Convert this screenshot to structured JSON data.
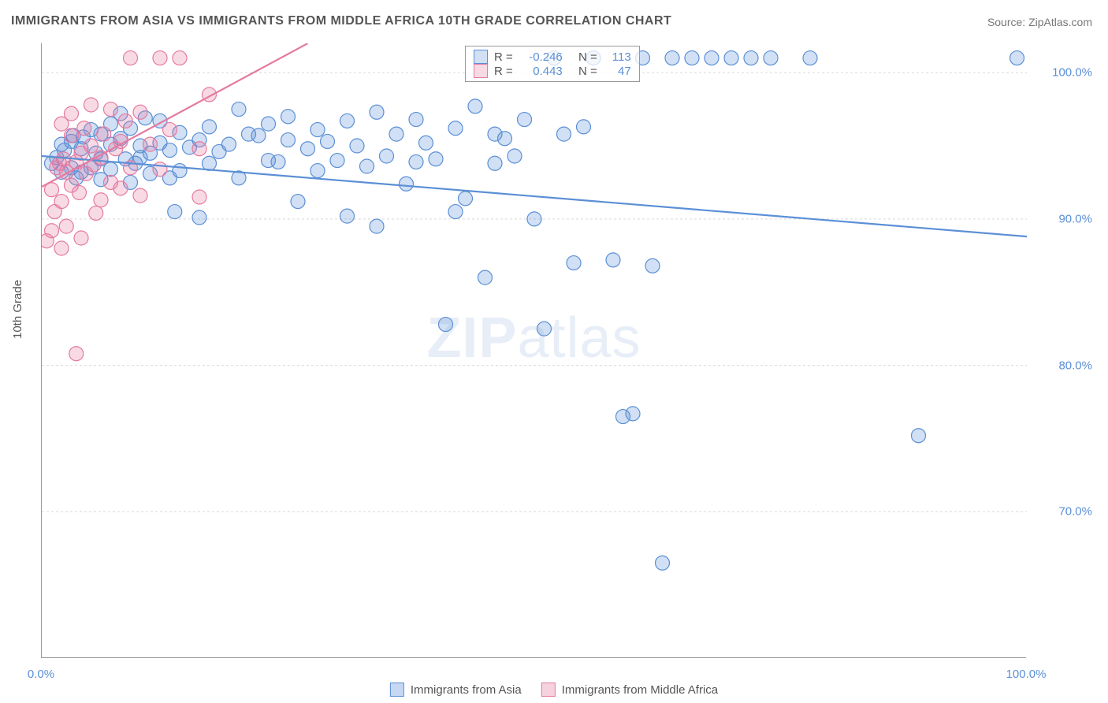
{
  "title": "IMMIGRANTS FROM ASIA VS IMMIGRANTS FROM MIDDLE AFRICA 10TH GRADE CORRELATION CHART",
  "source": "Source: ZipAtlas.com",
  "ylabel": "10th Grade",
  "watermark_bold": "ZIP",
  "watermark_rest": "atlas",
  "chart": {
    "type": "scatter",
    "background_color": "#ffffff",
    "grid_color": "#d9d9d9",
    "axis_color": "#999999",
    "xlim": [
      0,
      100
    ],
    "ylim": [
      60,
      102
    ],
    "xtick_positions": [
      0,
      12,
      24,
      36,
      48,
      60,
      72,
      84,
      100
    ],
    "xtick_labels_shown": {
      "0": "0.0%",
      "100": "100.0%"
    },
    "ytick_positions": [
      70,
      80,
      90,
      100
    ],
    "ytick_labels": [
      "70.0%",
      "80.0%",
      "90.0%",
      "100.0%"
    ],
    "tick_label_color": "#5b8fd6",
    "tick_fontsize": 15,
    "marker_radius": 9,
    "marker_fill_opacity": 0.28,
    "marker_stroke_width": 1.2,
    "trend_line_width": 2.2,
    "series": [
      {
        "name": "Immigrants from Asia",
        "color": "#5b8fd6",
        "fill": "rgba(91,143,214,0.28)",
        "R": "-0.246",
        "N": "113",
        "trend": {
          "x1": 0,
          "y1": 94.3,
          "x2": 100,
          "y2": 88.8
        },
        "points": [
          [
            1,
            93.8
          ],
          [
            1.5,
            94.2
          ],
          [
            2,
            95.1
          ],
          [
            2,
            93.2
          ],
          [
            2.3,
            94.7
          ],
          [
            3,
            95.3
          ],
          [
            3,
            93.5
          ],
          [
            3.2,
            95.7
          ],
          [
            3.5,
            92.8
          ],
          [
            4,
            94.8
          ],
          [
            4,
            93.2
          ],
          [
            4.2,
            95.6
          ],
          [
            5,
            96.1
          ],
          [
            5,
            93.5
          ],
          [
            5.5,
            94.5
          ],
          [
            6,
            95.8
          ],
          [
            6,
            92.7
          ],
          [
            6,
            94.1
          ],
          [
            7,
            96.5
          ],
          [
            7,
            93.4
          ],
          [
            7,
            95.1
          ],
          [
            8,
            97.2
          ],
          [
            8,
            95.5
          ],
          [
            8.5,
            94.1
          ],
          [
            9,
            92.5
          ],
          [
            9,
            96.2
          ],
          [
            9.5,
            93.8
          ],
          [
            10,
            95.0
          ],
          [
            10,
            94.2
          ],
          [
            10.5,
            96.9
          ],
          [
            11,
            94.5
          ],
          [
            11,
            93.1
          ],
          [
            12,
            95.2
          ],
          [
            12,
            96.7
          ],
          [
            13,
            94.7
          ],
          [
            13,
            92.8
          ],
          [
            13.5,
            90.5
          ],
          [
            14,
            95.9
          ],
          [
            14,
            93.3
          ],
          [
            15,
            94.9
          ],
          [
            16,
            95.4
          ],
          [
            16,
            90.1
          ],
          [
            17,
            96.3
          ],
          [
            17,
            93.8
          ],
          [
            18,
            94.6
          ],
          [
            19,
            95.1
          ],
          [
            20,
            97.5
          ],
          [
            20,
            92.8
          ],
          [
            21,
            95.8
          ],
          [
            22,
            95.7
          ],
          [
            23,
            94.0
          ],
          [
            23,
            96.5
          ],
          [
            24,
            93.9
          ],
          [
            25,
            95.4
          ],
          [
            25,
            97.0
          ],
          [
            26,
            91.2
          ],
          [
            27,
            94.8
          ],
          [
            28,
            96.1
          ],
          [
            28,
            93.3
          ],
          [
            29,
            95.3
          ],
          [
            30,
            94.0
          ],
          [
            31,
            96.7
          ],
          [
            31,
            90.2
          ],
          [
            32,
            95.0
          ],
          [
            33,
            93.6
          ],
          [
            34,
            97.3
          ],
          [
            34,
            89.5
          ],
          [
            35,
            94.3
          ],
          [
            36,
            95.8
          ],
          [
            37,
            92.4
          ],
          [
            38,
            96.8
          ],
          [
            38,
            93.9
          ],
          [
            39,
            95.2
          ],
          [
            40,
            94.1
          ],
          [
            41,
            82.8
          ],
          [
            42,
            96.2
          ],
          [
            42,
            90.5
          ],
          [
            43,
            91.4
          ],
          [
            44,
            97.7
          ],
          [
            45,
            86.0
          ],
          [
            46,
            93.8
          ],
          [
            46,
            95.8
          ],
          [
            47,
            95.5
          ],
          [
            48,
            94.3
          ],
          [
            49,
            96.8
          ],
          [
            50,
            90.0
          ],
          [
            51,
            82.5
          ],
          [
            52,
            101.0
          ],
          [
            53,
            95.8
          ],
          [
            54,
            87.0
          ],
          [
            55,
            96.3
          ],
          [
            56,
            101.0
          ],
          [
            58,
            87.2
          ],
          [
            59,
            76.5
          ],
          [
            60,
            76.7
          ],
          [
            61,
            101.0
          ],
          [
            62,
            86.8
          ],
          [
            64,
            101.0
          ],
          [
            66,
            101.0
          ],
          [
            68,
            101.0
          ],
          [
            70,
            101.0
          ],
          [
            72,
            101.0
          ],
          [
            74,
            101.0
          ],
          [
            78,
            101.0
          ],
          [
            63,
            66.5
          ],
          [
            89,
            75.2
          ],
          [
            99,
            101.0
          ]
        ]
      },
      {
        "name": "Immigrants from Middle Africa",
        "color": "#e57aa0",
        "fill": "rgba(229,122,160,0.28)",
        "R": "0.443",
        "N": "47",
        "trend": {
          "x1": 0,
          "y1": 92.2,
          "x2": 27,
          "y2": 102
        },
        "points": [
          [
            0.5,
            88.5
          ],
          [
            1,
            89.2
          ],
          [
            1,
            92.0
          ],
          [
            1.3,
            90.5
          ],
          [
            1.5,
            93.5
          ],
          [
            1.8,
            93.8
          ],
          [
            2,
            96.5
          ],
          [
            2,
            91.2
          ],
          [
            2,
            88.0
          ],
          [
            2.2,
            94.1
          ],
          [
            2.5,
            93.2
          ],
          [
            2.5,
            89.5
          ],
          [
            3,
            95.7
          ],
          [
            3,
            92.3
          ],
          [
            3,
            97.2
          ],
          [
            3.5,
            93.9
          ],
          [
            3.8,
            91.8
          ],
          [
            4,
            94.5
          ],
          [
            4,
            88.7
          ],
          [
            4.3,
            96.2
          ],
          [
            4.5,
            93.1
          ],
          [
            5,
            95.0
          ],
          [
            5,
            97.8
          ],
          [
            5.3,
            93.7
          ],
          [
            5.5,
            90.4
          ],
          [
            6,
            94.2
          ],
          [
            6,
            91.3
          ],
          [
            6.3,
            95.8
          ],
          [
            7,
            92.5
          ],
          [
            7,
            97.5
          ],
          [
            7.5,
            94.8
          ],
          [
            8,
            95.3
          ],
          [
            8,
            92.1
          ],
          [
            8.5,
            96.7
          ],
          [
            9,
            101.0
          ],
          [
            9,
            93.5
          ],
          [
            10,
            97.3
          ],
          [
            10,
            91.6
          ],
          [
            11,
            95.1
          ],
          [
            12,
            101.0
          ],
          [
            12,
            93.4
          ],
          [
            13,
            96.1
          ],
          [
            14,
            101.0
          ],
          [
            16,
            94.8
          ],
          [
            3.5,
            80.8
          ],
          [
            16,
            91.5
          ],
          [
            17,
            98.5
          ]
        ]
      }
    ]
  },
  "legend_top": {
    "R_label": "R =",
    "N_label": "N ="
  },
  "legend_bottom": [
    {
      "label": "Immigrants from Asia",
      "color": "#5b8fd6",
      "fill": "rgba(91,143,214,0.35)"
    },
    {
      "label": "Immigrants from Middle Africa",
      "color": "#e57aa0",
      "fill": "rgba(229,122,160,0.35)"
    }
  ]
}
